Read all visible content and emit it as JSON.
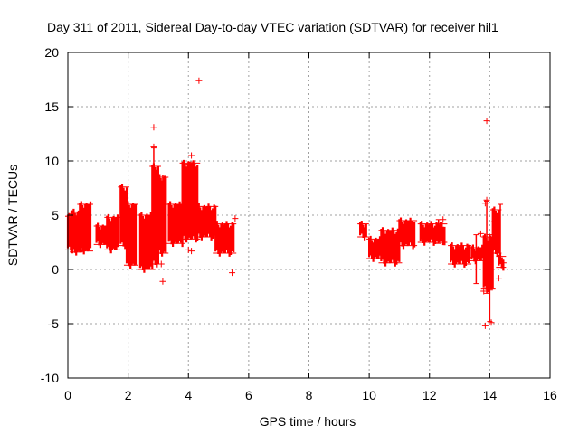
{
  "chart_data": {
    "type": "scatter",
    "title": "Day 311 of 2011, Sidereal Day-to-day VTEC variation (SDTVAR) for receiver hil1",
    "xlabel": "GPS time / hours",
    "ylabel": "SDTVAR / TECUs",
    "xlim": [
      0,
      16
    ],
    "ylim": [
      -10,
      20
    ],
    "xticks": [
      0,
      2,
      4,
      6,
      8,
      10,
      12,
      14,
      16
    ],
    "yticks": [
      -10,
      -5,
      0,
      5,
      10,
      15,
      20
    ],
    "grid": true,
    "marker": "+",
    "color": "#ff0000",
    "bands": [
      {
        "x0": 0.0,
        "x1": 0.15,
        "low": 1.8,
        "high": 4.9
      },
      {
        "x0": 0.15,
        "x1": 0.4,
        "low": 1.6,
        "high": 5.3
      },
      {
        "x0": 0.4,
        "x1": 0.75,
        "low": 1.7,
        "high": 6.0
      },
      {
        "x0": 0.95,
        "x1": 1.25,
        "low": 2.3,
        "high": 4.0
      },
      {
        "x0": 1.3,
        "x1": 1.65,
        "low": 1.8,
        "high": 4.8
      },
      {
        "x0": 1.75,
        "x1": 1.95,
        "low": 2.2,
        "high": 7.6
      },
      {
        "x0": 1.95,
        "x1": 2.25,
        "low": 0.4,
        "high": 6.0
      },
      {
        "x0": 2.4,
        "x1": 2.8,
        "low": 0.0,
        "high": 5.0
      },
      {
        "x0": 2.8,
        "x1": 3.0,
        "low": 0.5,
        "high": 9.5
      },
      {
        "x0": 3.0,
        "x1": 3.25,
        "low": 1.5,
        "high": 8.5
      },
      {
        "x0": 3.35,
        "x1": 3.8,
        "low": 2.4,
        "high": 6.0
      },
      {
        "x0": 3.8,
        "x1": 4.3,
        "low": 2.8,
        "high": 9.8
      },
      {
        "x0": 4.3,
        "x1": 4.9,
        "low": 3.0,
        "high": 5.8
      },
      {
        "x0": 4.9,
        "x1": 5.5,
        "low": 1.5,
        "high": 4.2
      },
      {
        "x0": 9.7,
        "x1": 9.9,
        "low": 3.0,
        "high": 4.2
      },
      {
        "x0": 10.0,
        "x1": 10.4,
        "low": 1.0,
        "high": 2.8
      },
      {
        "x0": 10.4,
        "x1": 11.0,
        "low": 0.6,
        "high": 3.6
      },
      {
        "x0": 11.0,
        "x1": 11.5,
        "low": 2.2,
        "high": 4.5
      },
      {
        "x0": 11.7,
        "x1": 12.5,
        "low": 2.5,
        "high": 4.2
      },
      {
        "x0": 12.7,
        "x1": 13.3,
        "low": 0.5,
        "high": 2.2
      },
      {
        "x0": 13.4,
        "x1": 13.8,
        "low": 0.8,
        "high": 2.0
      },
      {
        "x0": 13.8,
        "x1": 14.1,
        "low": -1.8,
        "high": 3.0
      },
      {
        "x0": 14.1,
        "x1": 14.3,
        "low": 1.5,
        "high": 5.5
      },
      {
        "x0": 14.3,
        "x1": 14.45,
        "low": 0.2,
        "high": 1.2
      }
    ],
    "spikes": [
      {
        "x": 2.85,
        "low": 5.0,
        "high": 11.2
      },
      {
        "x": 3.15,
        "low": 2.0,
        "high": 8.7
      },
      {
        "x": 4.05,
        "low": 3.0,
        "high": 9.9
      },
      {
        "x": 12.3,
        "low": 2.4,
        "high": 4.6
      },
      {
        "x": 13.55,
        "low": -1.3,
        "high": 3.2
      },
      {
        "x": 13.9,
        "low": -2.2,
        "high": 6.3
      },
      {
        "x": 14.0,
        "low": -4.8,
        "high": 3.2
      },
      {
        "x": 14.35,
        "low": 1.0,
        "high": 6.0
      }
    ],
    "outliers": [
      {
        "x": 4.35,
        "y": 17.4
      },
      {
        "x": 2.85,
        "y": 13.1
      },
      {
        "x": 2.85,
        "y": 11.3
      },
      {
        "x": 4.1,
        "y": 10.5
      },
      {
        "x": 4.0,
        "y": 9.7
      },
      {
        "x": 3.15,
        "y": -1.1
      },
      {
        "x": 3.1,
        "y": 0.5
      },
      {
        "x": 4.0,
        "y": 1.8
      },
      {
        "x": 4.1,
        "y": 1.7
      },
      {
        "x": 5.45,
        "y": -0.3
      },
      {
        "x": 5.55,
        "y": 4.7
      },
      {
        "x": 13.9,
        "y": 13.7
      },
      {
        "x": 13.85,
        "y": 6.1
      },
      {
        "x": 13.9,
        "y": 6.4
      },
      {
        "x": 13.85,
        "y": -5.2
      },
      {
        "x": 14.05,
        "y": -4.9
      },
      {
        "x": 13.8,
        "y": -2.0
      },
      {
        "x": 14.0,
        "y": -1.9
      },
      {
        "x": 14.15,
        "y": 4.4
      },
      {
        "x": 13.7,
        "y": 3.3
      },
      {
        "x": 14.45,
        "y": 0.6
      },
      {
        "x": 14.3,
        "y": -0.8
      },
      {
        "x": 12.45,
        "y": 4.6
      },
      {
        "x": 13.3,
        "y": 1.1
      },
      {
        "x": 9.75,
        "y": 4.2
      }
    ]
  }
}
